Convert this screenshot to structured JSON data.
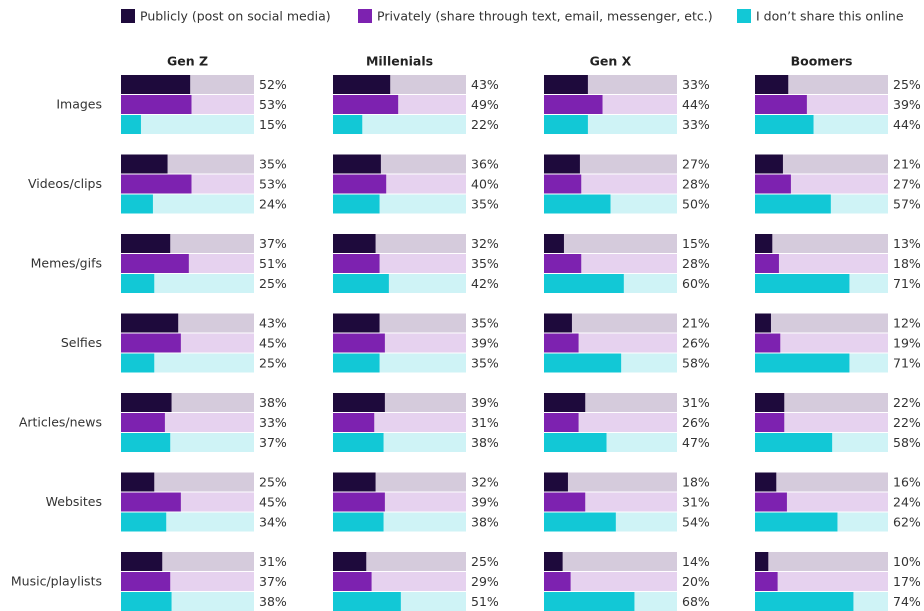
{
  "chart_data": {
    "type": "bar",
    "panels": [
      "Gen Z",
      "Millenials",
      "Gen X",
      "Boomers"
    ],
    "categories": [
      "Images",
      "Videos/clips",
      "Memes/gifs",
      "Selfies",
      "Articles/news",
      "Websites",
      "Music/playlists"
    ],
    "xlim": [
      0,
      100
    ],
    "series": [
      {
        "name": "Publicly (post on social media)",
        "color": "#1e0a3c",
        "track_color": "#d5cbdc",
        "values": [
          [
            52,
            35,
            37,
            43,
            38,
            25,
            31
          ],
          [
            43,
            36,
            32,
            35,
            39,
            32,
            25
          ],
          [
            33,
            27,
            15,
            21,
            31,
            18,
            14
          ],
          [
            25,
            21,
            13,
            12,
            22,
            16,
            10
          ]
        ],
        "value_labels": [
          [
            "52%",
            "35%",
            "37%",
            "43%",
            "38%",
            "25%",
            "31%"
          ],
          [
            "43%",
            "36%",
            "32%",
            "35%",
            "39%",
            "32%",
            "25%"
          ],
          [
            "33%",
            "27%",
            "15%",
            "21%",
            "31%",
            "18%",
            "14%"
          ],
          [
            "25%",
            "21%",
            "13%",
            "12%",
            "22%",
            "16%",
            "10%"
          ]
        ]
      },
      {
        "name": "Privately (share through text, email, messenger, etc.)",
        "color": "#7d22b0",
        "track_color": "#e6d2ef",
        "values": [
          [
            53,
            53,
            51,
            45,
            33,
            45,
            37
          ],
          [
            49,
            40,
            35,
            39,
            31,
            39,
            29
          ],
          [
            44,
            28,
            28,
            26,
            26,
            31,
            20
          ],
          [
            39,
            27,
            18,
            19,
            22,
            24,
            17
          ]
        ],
        "value_labels": [
          [
            "53%",
            "53%",
            "51%",
            "45%",
            "33%",
            "45%",
            "37%"
          ],
          [
            "49%",
            "40%",
            "35%",
            "39%",
            "31%",
            "39%",
            "29%"
          ],
          [
            "44%",
            "28%",
            "28%",
            "26%",
            "26%",
            "31%",
            "20%"
          ],
          [
            "39%",
            "27%",
            "18%",
            "19%",
            "22%",
            "24%",
            "17%"
          ]
        ]
      },
      {
        "name": "I don’t share this online",
        "color": "#12c8d6",
        "track_color": "#cff3f6",
        "values": [
          [
            15,
            24,
            25,
            25,
            37,
            34,
            38
          ],
          [
            22,
            35,
            42,
            35,
            38,
            38,
            51
          ],
          [
            33,
            50,
            60,
            58,
            47,
            54,
            68
          ],
          [
            44,
            57,
            71,
            71,
            58,
            62,
            74
          ]
        ],
        "value_labels": [
          [
            "15%",
            "24%",
            "25%",
            "25%",
            "37%",
            "34%",
            "38%"
          ],
          [
            "22%",
            "35%",
            "42%",
            "35%",
            "38%",
            "38%",
            "51%"
          ],
          [
            "33%",
            "50%",
            "60%",
            "58%",
            "47%",
            "54%",
            "68%"
          ],
          [
            "44%",
            "57%",
            "71%",
            "71%",
            "58%",
            "62%",
            "74%"
          ]
        ]
      }
    ]
  }
}
